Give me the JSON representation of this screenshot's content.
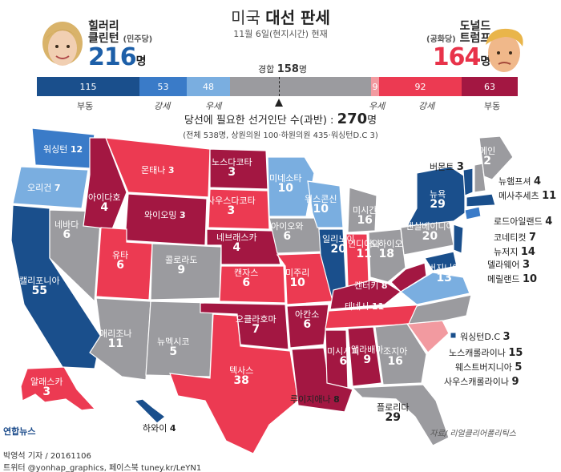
{
  "header": {
    "title_light": "미국",
    "title_bold": "대선 판세",
    "subtitle": "11월 6일(현지시간) 현재"
  },
  "clinton": {
    "name_line1": "힐러리",
    "name_line2": "클린턴",
    "party": "(민주당)",
    "votes": "216",
    "unit": "명",
    "color": "#1d5fa8"
  },
  "trump": {
    "party": "(공화당)",
    "name_line1": "도널드",
    "name_line2": "트럼프",
    "votes": "164",
    "unit": "명",
    "color": "#e8334a"
  },
  "bar": {
    "tossup_label": "경합",
    "tossup_value": "158",
    "tossup_unit": "명",
    "segments": [
      {
        "value": "115",
        "color": "#1a4f8c"
      },
      {
        "value": "53",
        "color": "#3a7bc8"
      },
      {
        "value": "48",
        "color": "#7aaee0"
      },
      {
        "value": "",
        "color": "#9b9b9f"
      },
      {
        "value": "9",
        "color": "#f29aa0"
      },
      {
        "value": "92",
        "color": "#ec3a52"
      },
      {
        "value": "63",
        "color": "#a31742"
      }
    ],
    "labels": {
      "d_solid": "부동",
      "d_likely": "강세",
      "d_lean": "우세",
      "r_lean": "우세",
      "r_likely": "강세",
      "r_solid": "부동"
    }
  },
  "needed": {
    "text": "당선에 필요한 선거인단 수(과반) :",
    "value": "270",
    "unit": "명",
    "detail": "(전체 538명, 상원의원 100·하원의원 435·워싱턴D.C 3)"
  },
  "states": {
    "wa": {
      "name": "워싱턴",
      "n": "12"
    },
    "or": {
      "name": "오리건",
      "n": "7"
    },
    "ca": {
      "name": "캘리포니아",
      "n": "55"
    },
    "nv": {
      "name": "네바다",
      "n": "6"
    },
    "id": {
      "name": "아이다호",
      "n": "4"
    },
    "mt": {
      "name": "몬태나",
      "n": "3"
    },
    "wy": {
      "name": "와이오밍",
      "n": "3"
    },
    "ut": {
      "name": "유타",
      "n": "6"
    },
    "az": {
      "name": "애리조나",
      "n": "11"
    },
    "co": {
      "name": "콜로라도",
      "n": "9"
    },
    "nm": {
      "name": "뉴멕시코",
      "n": "5"
    },
    "nd": {
      "name": "노스다코타",
      "n": "3"
    },
    "sd": {
      "name": "사우스다코타",
      "n": "3"
    },
    "ne": {
      "name": "네브래스카",
      "n": "4"
    },
    "ks": {
      "name": "캔자스",
      "n": "6"
    },
    "ok": {
      "name": "오클라호마",
      "n": "7"
    },
    "tx": {
      "name": "텍사스",
      "n": "38"
    },
    "mn": {
      "name": "미네소타",
      "n": "10"
    },
    "ia": {
      "name": "아이오와",
      "n": "6"
    },
    "mo": {
      "name": "미주리",
      "n": "10"
    },
    "ar": {
      "name": "아칸소",
      "n": "6"
    },
    "la": {
      "name": "루이지애나",
      "n": "8"
    },
    "wi": {
      "name": "위스콘신",
      "n": "10"
    },
    "il": {
      "name": "일리노이",
      "n": "20"
    },
    "mi": {
      "name": "미시간",
      "n": "16"
    },
    "in": {
      "name": "인디애나",
      "n": "11"
    },
    "oh": {
      "name": "오하이오",
      "n": "18"
    },
    "ky": {
      "name": "켄터키",
      "n": "8"
    },
    "tn": {
      "name": "테네시",
      "n": "11"
    },
    "ms": {
      "name": "미시시피",
      "n": "6"
    },
    "al": {
      "name": "앨라배마",
      "n": "9"
    },
    "ga": {
      "name": "조지아",
      "n": "16"
    },
    "fl": {
      "name": "플로리다",
      "n": "29"
    },
    "pa": {
      "name": "펜실베이니아",
      "n": "20"
    },
    "ny": {
      "name": "뉴욕",
      "n": "29"
    },
    "va": {
      "name": "버지니아",
      "n": "13"
    },
    "me": {
      "name": "메인",
      "n": "2"
    },
    "ak": {
      "name": "알래스카",
      "n": "3"
    },
    "hi": {
      "name": "하와이",
      "n": "4"
    }
  },
  "right_labels": {
    "vt": {
      "name": "버몬트",
      "n": "3"
    },
    "nh": {
      "name": "뉴햄프셔",
      "n": "4"
    },
    "ma": {
      "name": "메사추세츠",
      "n": "11"
    },
    "ri": {
      "name": "로드아일랜드",
      "n": "4"
    },
    "ct": {
      "name": "코네티컷",
      "n": "7"
    },
    "nj": {
      "name": "뉴저지",
      "n": "14"
    },
    "de": {
      "name": "델라웨어",
      "n": "3"
    },
    "md": {
      "name": "메릴랜드",
      "n": "10"
    },
    "dc": {
      "name": "워싱턴D.C",
      "n": "3"
    },
    "nc": {
      "name": "노스캐롤라이나",
      "n": "15"
    },
    "wv": {
      "name": "웨스트버지니아",
      "n": "5"
    },
    "sc": {
      "name": "사우스캐롤라이나",
      "n": "9"
    }
  },
  "source": "자료/ 리얼클리어폴리틱스",
  "logo": "연합뉴스",
  "footer": {
    "line1": "박영석 기자 / 20161106",
    "line2": "트위터 @yonhap_graphics, 페이스북 tuney.kr/LeYN1"
  }
}
